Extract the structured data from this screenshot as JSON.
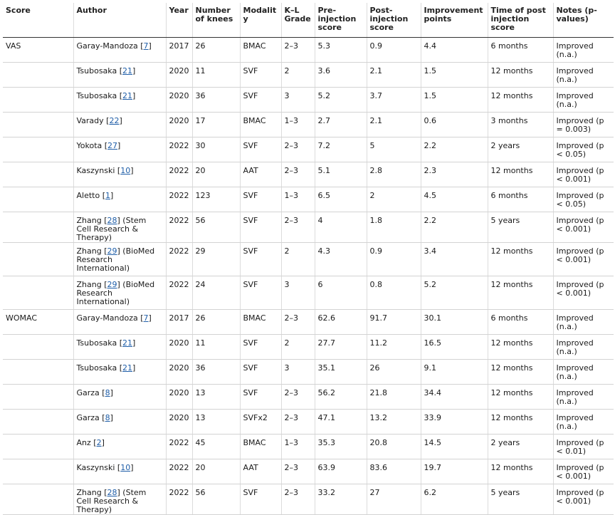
{
  "headers": [
    "Score",
    "Author",
    "Year",
    "Number of knees",
    "Modality",
    "K–L Grade",
    "Pre-injection score",
    "Post-injection score",
    "Improvement points",
    "Time of post injection score",
    "Notes (p-values)"
  ],
  "groups": [
    {
      "score": "VAS",
      "rows": [
        {
          "author": "Garay-Mandoza",
          "ref": "7",
          "suffix": "",
          "year": "2017",
          "knees": "26",
          "modality": "BMAC",
          "grade": "2–3",
          "pre": "5.3",
          "post": "0.9",
          "improvement": "4.4",
          "time": "6 months",
          "notes": "Improved (n.a.)"
        },
        {
          "author": "Tsubosaka",
          "ref": "21",
          "suffix": "",
          "year": "2020",
          "knees": "11",
          "modality": "SVF",
          "grade": "2",
          "pre": "3.6",
          "post": "2.1",
          "improvement": "1.5",
          "time": "12 months",
          "notes": "Improved (n.a.)"
        },
        {
          "author": "Tsubosaka",
          "ref": "21",
          "suffix": "",
          "year": "2020",
          "knees": "36",
          "modality": "SVF",
          "grade": "3",
          "pre": "5.2",
          "post": "3.7",
          "improvement": "1.5",
          "time": "12 months",
          "notes": "Improved (n.a.)"
        },
        {
          "author": "Varady",
          "ref": "22",
          "suffix": "",
          "year": "2020",
          "knees": "17",
          "modality": "BMAC",
          "grade": "1–3",
          "pre": "2.7",
          "post": "2.1",
          "improvement": "0.6",
          "time": "3 months",
          "notes": "Improved (p = 0.003)"
        },
        {
          "author": "Yokota",
          "ref": "27",
          "suffix": "",
          "year": "2022",
          "knees": "30",
          "modality": "SVF",
          "grade": "2–3",
          "pre": "7.2",
          "post": "5",
          "improvement": "2.2",
          "time": "2 years",
          "notes": "Improved (p < 0.05)"
        },
        {
          "author": "Kaszynski",
          "ref": "10",
          "suffix": "",
          "year": "2022",
          "knees": "20",
          "modality": "AAT",
          "grade": "2–3",
          "pre": "5.1",
          "post": "2.8",
          "improvement": "2.3",
          "time": "12 months",
          "notes": "Improved (p < 0.001)"
        },
        {
          "author": "Aletto",
          "ref": "1",
          "suffix": "",
          "year": "2022",
          "knees": "123",
          "modality": "SVF",
          "grade": "1–3",
          "pre": "6.5",
          "post": "2",
          "improvement": "4.5",
          "time": "6 months",
          "notes": "Improved (p < 0.05)"
        },
        {
          "author": "Zhang",
          "ref": "28",
          "suffix": " (Stem Cell Research & Therapy)",
          "year": "2022",
          "knees": "56",
          "modality": "SVF",
          "grade": "2–3",
          "pre": "4",
          "post": "1.8",
          "improvement": "2.2",
          "time": "5 years",
          "notes": "Improved (p < 0.001)"
        },
        {
          "author": "Zhang",
          "ref": "29",
          "suffix": " (BioMed Research International)",
          "year": "2022",
          "knees": "29",
          "modality": "SVF",
          "grade": "2",
          "pre": "4.3",
          "post": "0.9",
          "improvement": "3.4",
          "time": "12 months",
          "notes": "Improved (p < 0.001)",
          "tall": true
        },
        {
          "author": "Zhang",
          "ref": "29",
          "suffix": " (BioMed Research International)",
          "year": "2022",
          "knees": "24",
          "modality": "SVF",
          "grade": "3",
          "pre": "6",
          "post": "0.8",
          "improvement": "5.2",
          "time": "12 months",
          "notes": "Improved (p < 0.001)",
          "tall": true
        }
      ]
    },
    {
      "score": "WOMAC",
      "rows": [
        {
          "author": "Garay-Mandoza",
          "ref": "7",
          "suffix": "",
          "year": "2017",
          "knees": "26",
          "modality": "BMAC",
          "grade": "2–3",
          "pre": "62.6",
          "post": "91.7",
          "improvement": "30.1",
          "time": "6 months",
          "notes": "Improved (n.a.)"
        },
        {
          "author": "Tsubosaka",
          "ref": "21",
          "suffix": "",
          "year": "2020",
          "knees": "11",
          "modality": "SVF",
          "grade": "2",
          "pre": "27.7",
          "post": "11.2",
          "improvement": "16.5",
          "time": "12 months",
          "notes": "Improved (n.a.)"
        },
        {
          "author": "Tsubosaka",
          "ref": "21",
          "suffix": "",
          "year": "2020",
          "knees": "36",
          "modality": "SVF",
          "grade": "3",
          "pre": "35.1",
          "post": "26",
          "improvement": "9.1",
          "time": "12 months",
          "notes": "Improved (n.a.)"
        },
        {
          "author": "Garza",
          "ref": "8",
          "suffix": "",
          "year": "2020",
          "knees": "13",
          "modality": "SVF",
          "grade": "2–3",
          "pre": "56.2",
          "post": "21.8",
          "improvement": "34.4",
          "time": "12 months",
          "notes": "Improved (n.a.)"
        },
        {
          "author": "Garza",
          "ref": "8",
          "suffix": "",
          "year": "2020",
          "knees": "13",
          "modality": "SVFx2",
          "grade": "2–3",
          "pre": "47.1",
          "post": "13.2",
          "improvement": "33.9",
          "time": "12 months",
          "notes": "Improved (n.a.)"
        },
        {
          "author": "Anz",
          "ref": "2",
          "suffix": "",
          "year": "2022",
          "knees": "45",
          "modality": "BMAC",
          "grade": "1–3",
          "pre": "35.3",
          "post": "20.8",
          "improvement": "14.5",
          "time": "2 years",
          "notes": "Improved (p < 0.01)"
        },
        {
          "author": "Kaszynski",
          "ref": "10",
          "suffix": "",
          "year": "2022",
          "knees": "20",
          "modality": "AAT",
          "grade": "2–3",
          "pre": "63.9",
          "post": "83.6",
          "improvement": "19.7",
          "time": "12 months",
          "notes": "Improved (p < 0.001)"
        },
        {
          "author": "Zhang",
          "ref": "28",
          "suffix": " (Stem Cell Research & Therapy)",
          "year": "2022",
          "knees": "56",
          "modality": "SVF",
          "grade": "2–3",
          "pre": "33.2",
          "post": "27",
          "improvement": "6.2",
          "time": "5 years",
          "notes": "Improved (p < 0.001)"
        }
      ]
    }
  ]
}
